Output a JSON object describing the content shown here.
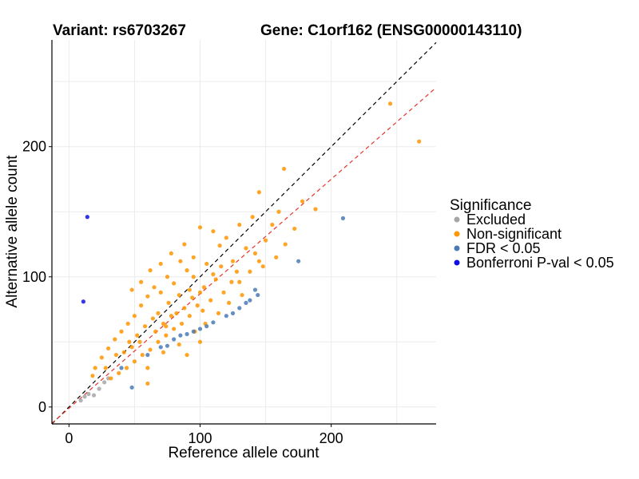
{
  "chart_data": {
    "type": "scatter",
    "title_variant": "Variant: rs6703267",
    "title_gene": "Gene: C1orf162 (ENSG00000143110)",
    "xlabel": "Reference allele count",
    "ylabel": "Alternative allele count",
    "xlim": [
      -13,
      280
    ],
    "ylim": [
      -13,
      282
    ],
    "x_ticks": [
      0,
      100,
      200
    ],
    "y_ticks": [
      0,
      100,
      200
    ],
    "grid": true,
    "reference_lines": [
      {
        "name": "identity",
        "slope": 1.0,
        "intercept": 0,
        "color": "#000000",
        "dash": true
      },
      {
        "name": "fit",
        "slope": 0.88,
        "intercept": -1,
        "color": "#e8332a",
        "dash": true
      }
    ],
    "legend": {
      "title": "Significance",
      "position": "right",
      "items": [
        {
          "label": "Excluded",
          "color": "#a6a6a6"
        },
        {
          "label": "Non-significant",
          "color": "#ff9500"
        },
        {
          "label": "FDR < 0.05",
          "color": "#4a7ab7"
        },
        {
          "label": "Bonferroni P-val < 0.05",
          "color": "#1010e6"
        }
      ]
    },
    "series": [
      {
        "name": "Excluded",
        "color": "#a6a6a6",
        "points": [
          [
            9,
            5
          ],
          [
            12,
            8
          ],
          [
            15,
            10
          ],
          [
            19,
            9
          ],
          [
            23,
            14
          ],
          [
            27,
            19
          ],
          [
            30,
            22
          ]
        ]
      },
      {
        "name": "Non-significant",
        "color": "#ff9500",
        "points": [
          [
            245,
            233
          ],
          [
            267,
            204
          ],
          [
            164,
            183
          ],
          [
            145,
            165
          ],
          [
            188,
            152
          ],
          [
            178,
            158
          ],
          [
            160,
            150
          ],
          [
            140,
            146
          ],
          [
            155,
            140
          ],
          [
            172,
            137
          ],
          [
            130,
            140
          ],
          [
            150,
            128
          ],
          [
            165,
            125
          ],
          [
            120,
            130
          ],
          [
            135,
            122
          ],
          [
            115,
            124
          ],
          [
            110,
            135
          ],
          [
            125,
            112
          ],
          [
            142,
            118
          ],
          [
            158,
            115
          ],
          [
            148,
            108
          ],
          [
            128,
            104
          ],
          [
            100,
            138
          ],
          [
            105,
            110
          ],
          [
            95,
            115
          ],
          [
            90,
            105
          ],
          [
            85,
            112
          ],
          [
            80,
            95
          ],
          [
            75,
            100
          ],
          [
            70,
            88
          ],
          [
            65,
            92
          ],
          [
            60,
            85
          ],
          [
            55,
            78
          ],
          [
            50,
            70
          ],
          [
            45,
            64
          ],
          [
            40,
            58
          ],
          [
            35,
            52
          ],
          [
            30,
            45
          ],
          [
            25,
            38
          ],
          [
            20,
            30
          ],
          [
            18,
            24
          ],
          [
            48,
            90
          ],
          [
            55,
            96
          ],
          [
            62,
            105
          ],
          [
            70,
            110
          ],
          [
            78,
            118
          ],
          [
            88,
            125
          ],
          [
            95,
            100
          ],
          [
            103,
            92
          ],
          [
            112,
            98
          ],
          [
            118,
            88
          ],
          [
            108,
            82
          ],
          [
            98,
            78
          ],
          [
            92,
            70
          ],
          [
            86,
            64
          ],
          [
            80,
            60
          ],
          [
            74,
            55
          ],
          [
            68,
            50
          ],
          [
            62,
            44
          ],
          [
            56,
            40
          ],
          [
            50,
            35
          ],
          [
            44,
            30
          ],
          [
            38,
            26
          ],
          [
            32,
            22
          ],
          [
            28,
            30
          ],
          [
            60,
            30
          ],
          [
            72,
            42
          ],
          [
            84,
            48
          ],
          [
            96,
            58
          ],
          [
            104,
            64
          ],
          [
            114,
            72
          ],
          [
            122,
            80
          ],
          [
            132,
            86
          ],
          [
            68,
            72
          ],
          [
            76,
            80
          ],
          [
            84,
            86
          ],
          [
            92,
            90
          ],
          [
            58,
            62
          ],
          [
            52,
            55
          ],
          [
            46,
            50
          ],
          [
            64,
            68
          ],
          [
            72,
            64
          ],
          [
            78,
            70
          ],
          [
            88,
            76
          ],
          [
            94,
            84
          ],
          [
            100,
            88
          ],
          [
            110,
            102
          ],
          [
            116,
            108
          ],
          [
            124,
            96
          ],
          [
            60,
            18
          ],
          [
            90,
            40
          ],
          [
            100,
            50
          ],
          [
            42,
            42
          ],
          [
            36,
            40
          ],
          [
            48,
            46
          ],
          [
            54,
            50
          ],
          [
            66,
            58
          ],
          [
            74,
            62
          ],
          [
            82,
            72
          ],
          [
            102,
            74
          ],
          [
            130,
            96
          ],
          [
            138,
            104
          ],
          [
            145,
            112
          ]
        ]
      },
      {
        "name": "FDR < 0.05",
        "color": "#4a7ab7",
        "points": [
          [
            209,
            145
          ],
          [
            175,
            112
          ],
          [
            144,
            86
          ],
          [
            142,
            90
          ],
          [
            138,
            82
          ],
          [
            135,
            80
          ],
          [
            130,
            76
          ],
          [
            125,
            72
          ],
          [
            120,
            70
          ],
          [
            110,
            65
          ],
          [
            105,
            62
          ],
          [
            100,
            60
          ],
          [
            95,
            58
          ],
          [
            90,
            56
          ],
          [
            85,
            55
          ],
          [
            80,
            52
          ],
          [
            75,
            47
          ],
          [
            70,
            46
          ],
          [
            60,
            40
          ],
          [
            40,
            30
          ],
          [
            48,
            15
          ]
        ]
      },
      {
        "name": "Bonferroni P-val < 0.05",
        "color": "#1010e6",
        "points": [
          [
            14,
            146
          ],
          [
            11,
            81
          ]
        ]
      }
    ]
  }
}
